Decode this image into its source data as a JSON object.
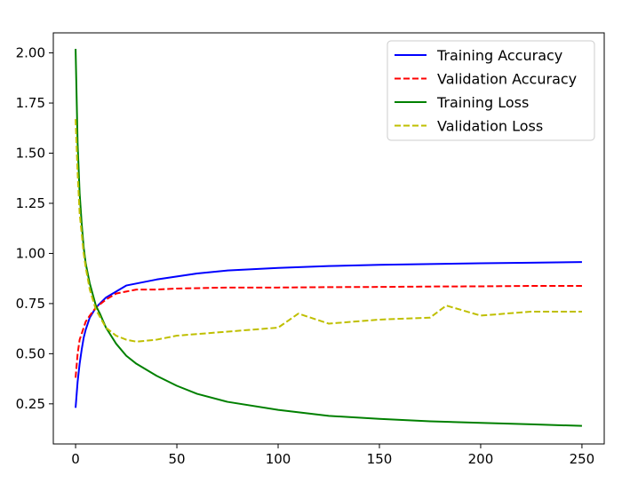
{
  "chart_data": {
    "type": "line",
    "xlim": [
      -11,
      261
    ],
    "ylim": [
      0.05,
      2.1
    ],
    "x_ticks": [
      0,
      50,
      100,
      150,
      200,
      250
    ],
    "x_tick_labels": [
      "0",
      "50",
      "100",
      "150",
      "200",
      "250"
    ],
    "y_ticks": [
      0.25,
      0.5,
      0.75,
      1.0,
      1.25,
      1.5,
      1.75,
      2.0
    ],
    "y_tick_labels": [
      "0.25",
      "0.50",
      "0.75",
      "1.00",
      "1.25",
      "1.50",
      "1.75",
      "2.00"
    ],
    "grid": false,
    "legend_position": "top-right",
    "series": [
      {
        "name": "Training Accuracy",
        "color": "#0000ff",
        "dash": "solid",
        "x": [
          0,
          1,
          2,
          3,
          4,
          5,
          7,
          10,
          15,
          20,
          25,
          30,
          40,
          50,
          60,
          75,
          100,
          125,
          150,
          175,
          200,
          225,
          250
        ],
        "y": [
          0.23,
          0.36,
          0.45,
          0.52,
          0.58,
          0.62,
          0.68,
          0.73,
          0.78,
          0.81,
          0.84,
          0.85,
          0.87,
          0.885,
          0.9,
          0.915,
          0.928,
          0.937,
          0.943,
          0.947,
          0.951,
          0.954,
          0.957
        ]
      },
      {
        "name": "Validation Accuracy",
        "color": "#ff0000",
        "dash": "dashed",
        "x": [
          0,
          1,
          2,
          3,
          4,
          5,
          7,
          10,
          15,
          20,
          25,
          30,
          40,
          50,
          75,
          100,
          125,
          150,
          175,
          200,
          225,
          250
        ],
        "y": [
          0.38,
          0.5,
          0.57,
          0.6,
          0.63,
          0.66,
          0.69,
          0.73,
          0.77,
          0.8,
          0.81,
          0.82,
          0.82,
          0.825,
          0.83,
          0.83,
          0.832,
          0.833,
          0.835,
          0.836,
          0.838,
          0.838
        ]
      },
      {
        "name": "Training Loss",
        "color": "#008000",
        "dash": "solid",
        "x": [
          0,
          1,
          2,
          3,
          4,
          5,
          7,
          10,
          12,
          15,
          20,
          25,
          30,
          40,
          50,
          60,
          75,
          100,
          125,
          150,
          175,
          200,
          225,
          250
        ],
        "y": [
          2.02,
          1.55,
          1.3,
          1.15,
          1.03,
          0.95,
          0.85,
          0.74,
          0.7,
          0.63,
          0.55,
          0.49,
          0.45,
          0.39,
          0.34,
          0.3,
          0.26,
          0.22,
          0.19,
          0.175,
          0.163,
          0.155,
          0.148,
          0.14
        ]
      },
      {
        "name": "Validation Loss",
        "color": "#bfbf00",
        "dash": "dashed",
        "x": [
          0,
          1,
          2,
          3,
          4,
          5,
          7,
          10,
          15,
          20,
          25,
          30,
          40,
          50,
          75,
          100,
          110,
          125,
          150,
          175,
          183,
          200,
          225,
          250
        ],
        "y": [
          1.67,
          1.4,
          1.2,
          1.1,
          1.0,
          0.93,
          0.82,
          0.72,
          0.63,
          0.59,
          0.57,
          0.56,
          0.57,
          0.59,
          0.61,
          0.63,
          0.7,
          0.65,
          0.67,
          0.68,
          0.74,
          0.69,
          0.71,
          0.71
        ]
      }
    ]
  }
}
